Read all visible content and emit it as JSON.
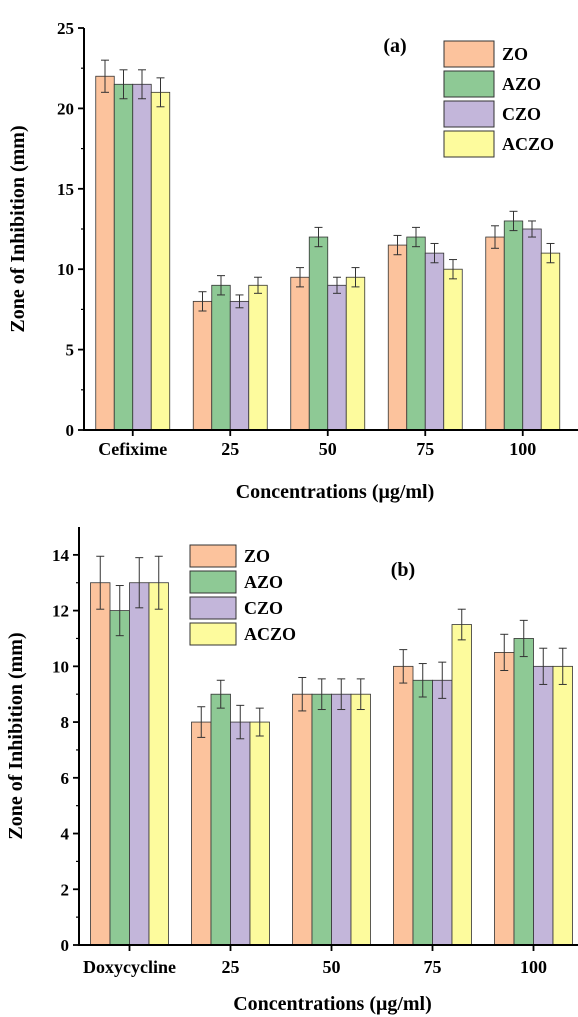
{
  "colors": {
    "ZO": "#fcc39d",
    "AZO": "#8ec995",
    "CZO": "#c3b6da",
    "ACZO": "#fdfb9d",
    "axis": "#000000"
  },
  "chart_data": [
    {
      "type": "bar",
      "annotation": "(a)",
      "xlabel": "Concentrations (μg/ml)",
      "ylabel": "Zone of Inhibition (mm)",
      "categories": [
        "Cefixime",
        "25",
        "50",
        "75",
        "100"
      ],
      "ylim": [
        0,
        25
      ],
      "yticks": [
        0,
        5,
        10,
        15,
        20,
        25
      ],
      "legend_position": "top-right",
      "series": [
        {
          "name": "ZO",
          "values": [
            22,
            8,
            9.5,
            11.5,
            12
          ],
          "errors": [
            1,
            0.6,
            0.6,
            0.6,
            0.7
          ]
        },
        {
          "name": "AZO",
          "values": [
            21.5,
            9,
            12,
            12,
            13
          ],
          "errors": [
            0.9,
            0.6,
            0.6,
            0.6,
            0.6
          ]
        },
        {
          "name": "CZO",
          "values": [
            21.5,
            8,
            9,
            11,
            12.5
          ],
          "errors": [
            0.9,
            0.4,
            0.5,
            0.6,
            0.5
          ]
        },
        {
          "name": "ACZO",
          "values": [
            21,
            9,
            9.5,
            10,
            11
          ],
          "errors": [
            0.9,
            0.5,
            0.6,
            0.6,
            0.6
          ]
        }
      ]
    },
    {
      "type": "bar",
      "annotation": "(b)",
      "xlabel": "Concentrations (μg/ml)",
      "ylabel": "Zone of Inhibition (mm)",
      "categories": [
        "Doxycycline",
        "25",
        "50",
        "75",
        "100"
      ],
      "ylim": [
        0,
        15
      ],
      "yticks": [
        0,
        2,
        4,
        6,
        8,
        10,
        12,
        14
      ],
      "legend_position": "top-left",
      "series": [
        {
          "name": "ZO",
          "values": [
            13,
            8,
            9,
            10,
            10.5
          ],
          "errors": [
            0.95,
            0.55,
            0.6,
            0.6,
            0.65
          ]
        },
        {
          "name": "AZO",
          "values": [
            12,
            9,
            9,
            9.5,
            11
          ],
          "errors": [
            0.9,
            0.5,
            0.55,
            0.6,
            0.65
          ]
        },
        {
          "name": "CZO",
          "values": [
            13,
            8,
            9,
            9.5,
            10
          ],
          "errors": [
            0.9,
            0.6,
            0.55,
            0.65,
            0.65
          ]
        },
        {
          "name": "ACZO",
          "values": [
            13,
            8,
            9,
            11.5,
            10
          ],
          "errors": [
            0.95,
            0.5,
            0.55,
            0.55,
            0.65
          ]
        }
      ]
    }
  ]
}
